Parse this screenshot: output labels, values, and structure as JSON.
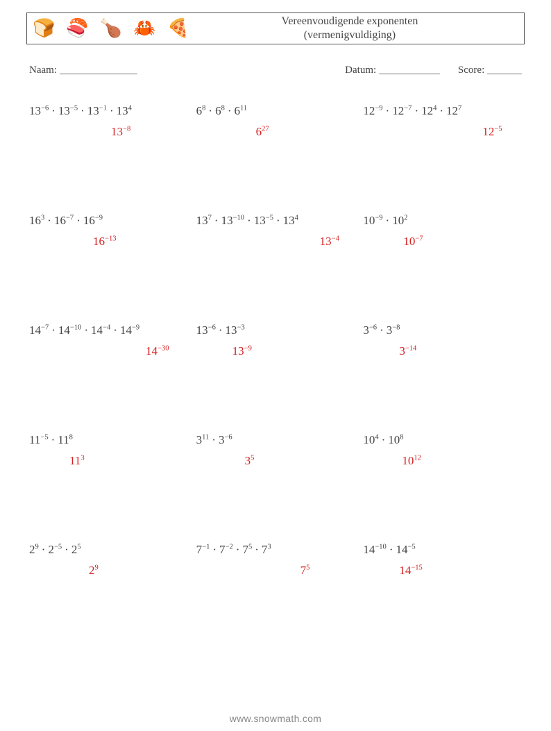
{
  "header": {
    "icons": [
      "🍞",
      "🍣",
      "🍗",
      "🦀",
      "🍕"
    ],
    "title_line1": "Vereenvoudigende exponenten",
    "title_line2": "(vermenigvuldiging)"
  },
  "meta": {
    "name_label": "Naam:",
    "date_label": "Datum:",
    "score_label": "Score:",
    "name_blank_width": 112,
    "date_blank_width": 88,
    "score_blank_width": 50
  },
  "answer_color": "#d41f1f",
  "problems": [
    {
      "terms": [
        {
          "base": "13",
          "exp": "−6"
        },
        {
          "base": "13",
          "exp": "−5"
        },
        {
          "base": "13",
          "exp": "−1"
        },
        {
          "base": "13",
          "exp": "4"
        }
      ],
      "answer": {
        "base": "13",
        "exp": "−8"
      },
      "answer_pad": 118
    },
    {
      "terms": [
        {
          "base": "6",
          "exp": "8"
        },
        {
          "base": "6",
          "exp": "8"
        },
        {
          "base": "6",
          "exp": "11"
        }
      ],
      "answer": {
        "base": "6",
        "exp": "27"
      },
      "answer_pad": 86
    },
    {
      "terms": [
        {
          "base": "12",
          "exp": "−9"
        },
        {
          "base": "12",
          "exp": "−7"
        },
        {
          "base": "12",
          "exp": "4"
        },
        {
          "base": "12",
          "exp": "7"
        }
      ],
      "answer": {
        "base": "12",
        "exp": "−5"
      },
      "answer_pad": 172
    },
    {
      "terms": [
        {
          "base": "16",
          "exp": "3"
        },
        {
          "base": "16",
          "exp": "−7"
        },
        {
          "base": "16",
          "exp": "−9"
        }
      ],
      "answer": {
        "base": "16",
        "exp": "−13"
      },
      "answer_pad": 92
    },
    {
      "terms": [
        {
          "base": "13",
          "exp": "7"
        },
        {
          "base": "13",
          "exp": "−10"
        },
        {
          "base": "13",
          "exp": "−5"
        },
        {
          "base": "13",
          "exp": "4"
        }
      ],
      "answer": {
        "base": "13",
        "exp": "−4"
      },
      "answer_pad": 178
    },
    {
      "terms": [
        {
          "base": "10",
          "exp": "−9"
        },
        {
          "base": "10",
          "exp": "2"
        }
      ],
      "answer": {
        "base": "10",
        "exp": "−7"
      },
      "answer_pad": 58
    },
    {
      "terms": [
        {
          "base": "14",
          "exp": "−7"
        },
        {
          "base": "14",
          "exp": "−10"
        },
        {
          "base": "14",
          "exp": "−4"
        },
        {
          "base": "14",
          "exp": "−9"
        }
      ],
      "answer": {
        "base": "14",
        "exp": "−30"
      },
      "answer_pad": 168
    },
    {
      "terms": [
        {
          "base": "13",
          "exp": "−6"
        },
        {
          "base": "13",
          "exp": "−3"
        }
      ],
      "answer": {
        "base": "13",
        "exp": "−9"
      },
      "answer_pad": 52
    },
    {
      "terms": [
        {
          "base": "3",
          "exp": "−6"
        },
        {
          "base": "3",
          "exp": "−8"
        }
      ],
      "answer": {
        "base": "3",
        "exp": "−14"
      },
      "answer_pad": 52
    },
    {
      "terms": [
        {
          "base": "11",
          "exp": "−5"
        },
        {
          "base": "11",
          "exp": "8"
        }
      ],
      "answer": {
        "base": "11",
        "exp": "3"
      },
      "answer_pad": 58
    },
    {
      "terms": [
        {
          "base": "3",
          "exp": "11"
        },
        {
          "base": "3",
          "exp": "−6"
        }
      ],
      "answer": {
        "base": "3",
        "exp": "5"
      },
      "answer_pad": 70
    },
    {
      "terms": [
        {
          "base": "10",
          "exp": "4"
        },
        {
          "base": "10",
          "exp": "8"
        }
      ],
      "answer": {
        "base": "10",
        "exp": "12"
      },
      "answer_pad": 56
    },
    {
      "terms": [
        {
          "base": "2",
          "exp": "9"
        },
        {
          "base": "2",
          "exp": "−5"
        },
        {
          "base": "2",
          "exp": "5"
        }
      ],
      "answer": {
        "base": "2",
        "exp": "9"
      },
      "answer_pad": 86
    },
    {
      "terms": [
        {
          "base": "7",
          "exp": "−1"
        },
        {
          "base": "7",
          "exp": "−2"
        },
        {
          "base": "7",
          "exp": "5"
        },
        {
          "base": "7",
          "exp": "3"
        }
      ],
      "answer": {
        "base": "7",
        "exp": "5"
      },
      "answer_pad": 150
    },
    {
      "terms": [
        {
          "base": "14",
          "exp": "−10"
        },
        {
          "base": "14",
          "exp": "−5"
        }
      ],
      "answer": {
        "base": "14",
        "exp": "−15"
      },
      "answer_pad": 52
    }
  ],
  "footer": "www.snowmath.com"
}
